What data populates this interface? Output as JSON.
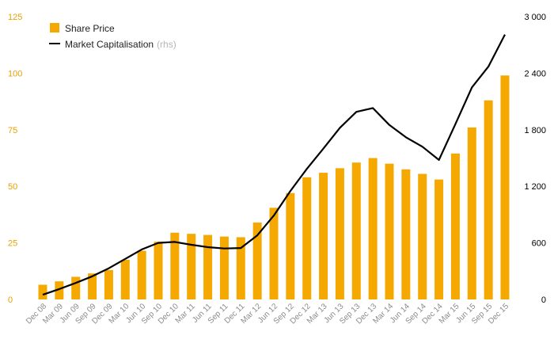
{
  "chart_data": {
    "type": "bar",
    "categories": [
      "Dec 08",
      "Mar 09",
      "Jun 09",
      "Sep 09",
      "Dec 09",
      "Mar 10",
      "Jun 10",
      "Sep 10",
      "Dec 10",
      "Mar 11",
      "Jun 11",
      "Sep 11",
      "Dec 11",
      "Mar 12",
      "Jun 12",
      "Sep 12",
      "Dec 12",
      "Mar 13",
      "Jun 13",
      "Sep 13",
      "Dec 13",
      "Mar 14",
      "Jun 14",
      "Sep 14",
      "Dec 14",
      "Mar 15",
      "Jun 15",
      "Sep 15",
      "Dec 15"
    ],
    "series": [
      {
        "name": "Share Price",
        "type": "bar",
        "axis": "left",
        "color": "#f5a800",
        "values": [
          6.5,
          8,
          10,
          11.5,
          13,
          17.5,
          21.5,
          25.5,
          29.5,
          29,
          28.5,
          27.8,
          27.5,
          34,
          40.5,
          47,
          54,
          56,
          58,
          60.5,
          62.5,
          60,
          57.5,
          55.5,
          53,
          64.5,
          76,
          88,
          99
        ]
      },
      {
        "name": "Market Capitalisation",
        "name_suffix": "(rhs)",
        "type": "line",
        "axis": "right",
        "color": "#000000",
        "values": [
          50,
          110,
          175,
          245,
          330,
          430,
          530,
          600,
          610,
          580,
          555,
          540,
          545,
          680,
          890,
          1150,
          1385,
          1600,
          1820,
          1990,
          2030,
          1850,
          1720,
          1620,
          1480,
          1860,
          2250,
          2470,
          2810
        ]
      }
    ],
    "left_axis": {
      "ylim": [
        0,
        125
      ],
      "ticks": [
        "0",
        "25",
        "50",
        "75",
        "100",
        "125"
      ],
      "color": "#e8a200"
    },
    "right_axis": {
      "ylim": [
        0,
        3000
      ],
      "ticks": [
        "0",
        "600",
        "1 200",
        "1 800",
        "2 400",
        "3 000"
      ],
      "color": "#000000"
    },
    "grid": false,
    "legend_position": "top-left"
  }
}
